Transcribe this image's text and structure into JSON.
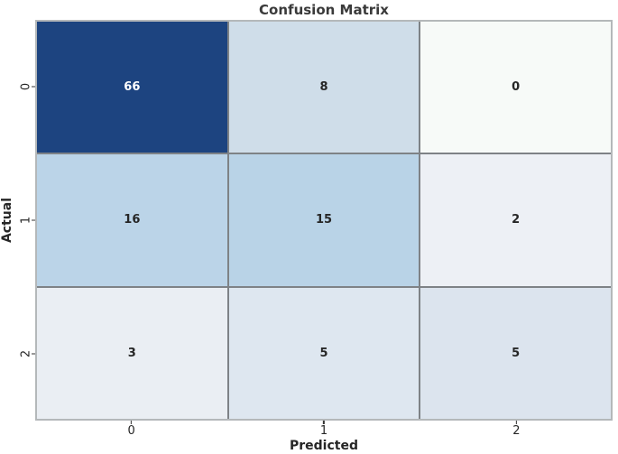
{
  "figure": {
    "background": "#ffffff",
    "title_color": "#3a3a3a"
  },
  "chart_data": {
    "type": "heatmap",
    "title": "Confusion Matrix",
    "xlabel": "Predicted",
    "ylabel": "Actual",
    "x_ticklabels": [
      "0",
      "1",
      "2"
    ],
    "y_ticklabels": [
      "0",
      "1",
      "2"
    ],
    "values": [
      [
        66,
        8,
        0
      ],
      [
        16,
        15,
        2
      ],
      [
        3,
        5,
        5
      ]
    ],
    "colormap": "Blues",
    "colorbar": false,
    "value_range": [
      0,
      66
    ],
    "cell_colors": [
      [
        "#1d4480",
        "#cfdde9",
        "#f7faf8"
      ],
      [
        "#bbd4e8",
        "#b9d3e7",
        "#edf0f5"
      ],
      [
        "#eaeef3",
        "#dee7f0",
        "#dce4ee"
      ]
    ],
    "text_colors": [
      [
        "#ffffff",
        "#262626",
        "#262626"
      ],
      [
        "#262626",
        "#262626",
        "#262626"
      ],
      [
        "#262626",
        "#262626",
        "#262626"
      ]
    ],
    "grid_line_color": "#7e8286",
    "border_color": "#b4b8ba",
    "tick_color": "#333333",
    "label_color": "#262626",
    "legend": "none"
  }
}
